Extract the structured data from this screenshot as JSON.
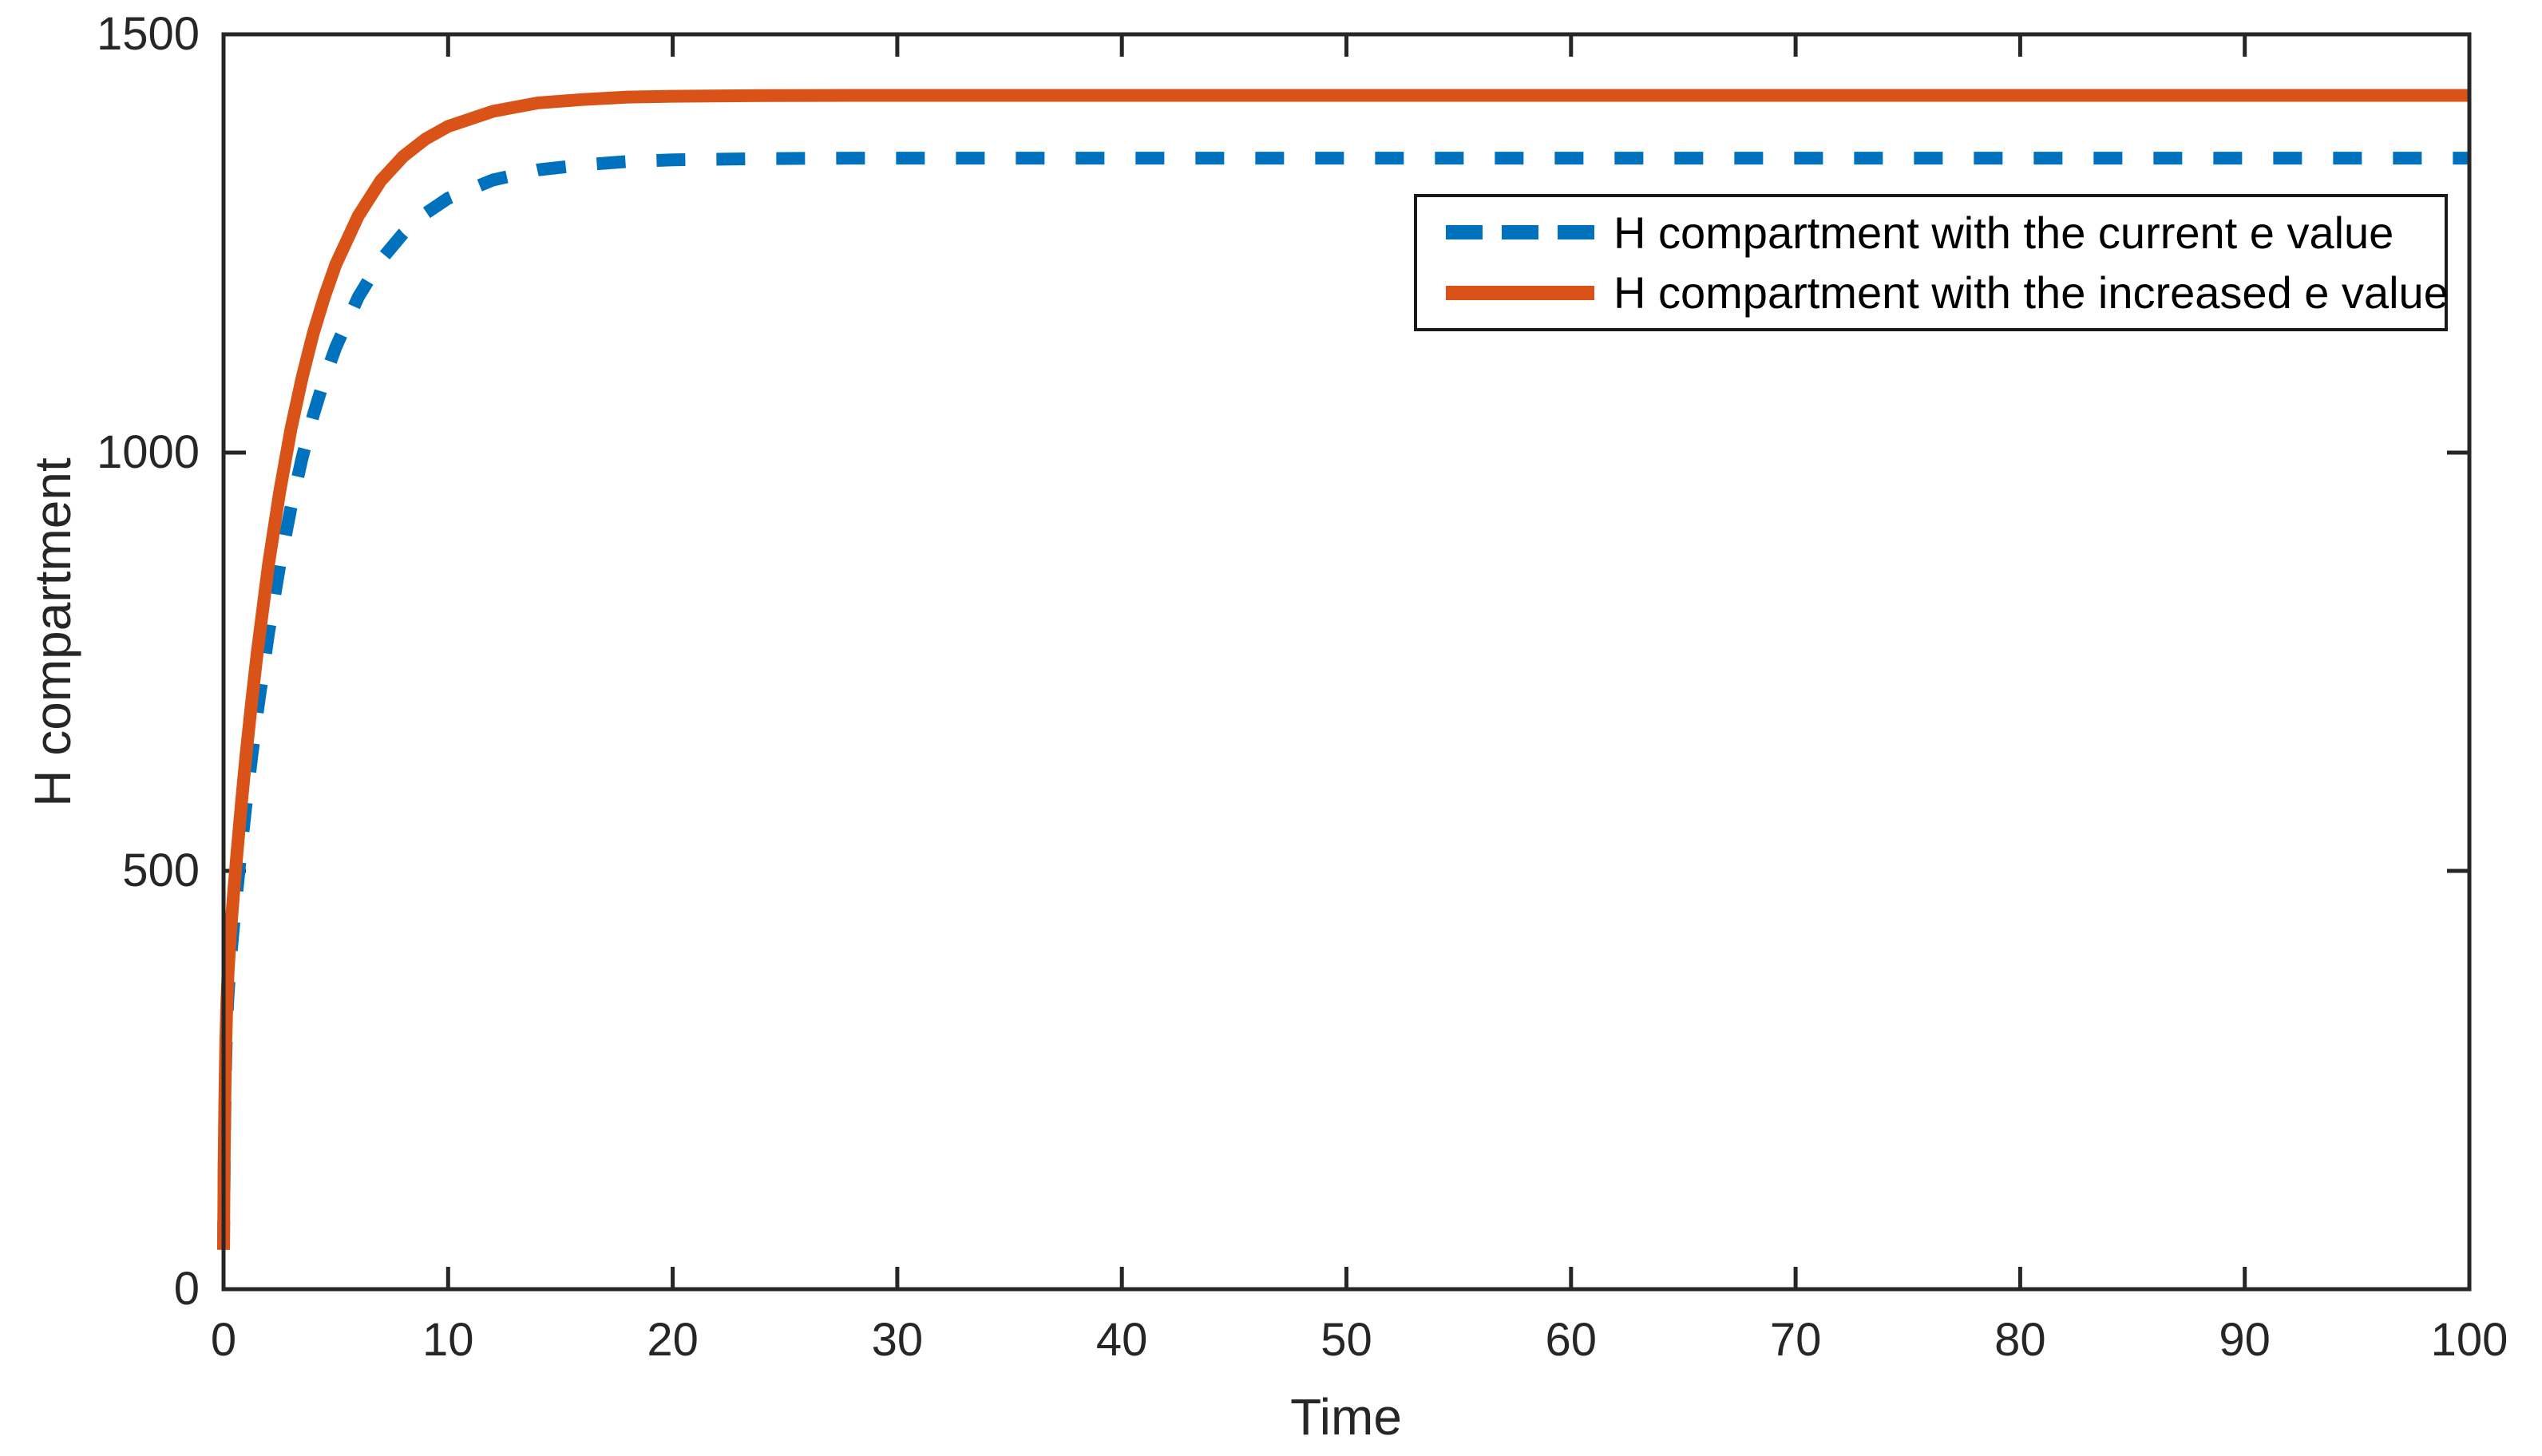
{
  "colors": {
    "series_current_blue": "#0072BD",
    "series_increased_orange": "#D95319",
    "axis": "#262626",
    "legend_border": "#1a1a1a",
    "background": "#ffffff"
  },
  "chart_data": {
    "type": "line",
    "title": "",
    "xlabel": "Time",
    "ylabel": "H compartment",
    "xlim": [
      0,
      100
    ],
    "ylim": [
      0,
      1500
    ],
    "x_ticks": [
      0,
      10,
      20,
      30,
      40,
      50,
      60,
      70,
      80,
      90,
      100
    ],
    "y_ticks": [
      0,
      500,
      1000,
      1500
    ],
    "grid": false,
    "box": true,
    "legend_position": "upper right inside",
    "series": [
      {
        "name": "H compartment with the current e value",
        "color": "#0072BD",
        "style": "dashed",
        "points": [
          [
            0,
            47
          ],
          [
            0.03,
            148
          ],
          [
            0.06,
            216
          ],
          [
            0.1,
            275
          ],
          [
            0.15,
            321
          ],
          [
            0.2,
            350
          ],
          [
            0.3,
            390
          ],
          [
            0.45,
            436
          ],
          [
            0.6,
            477
          ],
          [
            0.8,
            530
          ],
          [
            1,
            579
          ],
          [
            1.25,
            636
          ],
          [
            1.5,
            689
          ],
          [
            2,
            784
          ],
          [
            2.5,
            865
          ],
          [
            3,
            934
          ],
          [
            3.5,
            994
          ],
          [
            4,
            1045
          ],
          [
            4.5,
            1089
          ],
          [
            5,
            1126
          ],
          [
            6,
            1186
          ],
          [
            7,
            1230
          ],
          [
            8,
            1262
          ],
          [
            9,
            1286
          ],
          [
            10,
            1304
          ],
          [
            12,
            1326
          ],
          [
            14,
            1338
          ],
          [
            16,
            1344
          ],
          [
            18,
            1348
          ],
          [
            20,
            1350
          ],
          [
            24,
            1351.4
          ],
          [
            28,
            1352
          ],
          [
            40,
            1352
          ],
          [
            60,
            1352
          ],
          [
            80,
            1352
          ],
          [
            100,
            1352
          ]
        ]
      },
      {
        "name": "H compartment with the increased e value",
        "color": "#D95319",
        "style": "solid",
        "points": [
          [
            0,
            47
          ],
          [
            0.03,
            156
          ],
          [
            0.06,
            230
          ],
          [
            0.1,
            294
          ],
          [
            0.15,
            344
          ],
          [
            0.2,
            377
          ],
          [
            0.3,
            422
          ],
          [
            0.45,
            475
          ],
          [
            0.6,
            522
          ],
          [
            0.8,
            582
          ],
          [
            1,
            638
          ],
          [
            1.25,
            702
          ],
          [
            1.5,
            761
          ],
          [
            2,
            866
          ],
          [
            2.5,
            953
          ],
          [
            3,
            1028
          ],
          [
            3.5,
            1090
          ],
          [
            4,
            1143
          ],
          [
            4.5,
            1187
          ],
          [
            5,
            1225
          ],
          [
            6,
            1283
          ],
          [
            7,
            1325
          ],
          [
            8,
            1354
          ],
          [
            9,
            1375
          ],
          [
            10,
            1390
          ],
          [
            12,
            1408
          ],
          [
            14,
            1418
          ],
          [
            16,
            1422
          ],
          [
            18,
            1425
          ],
          [
            20,
            1426
          ],
          [
            24,
            1426.7
          ],
          [
            28,
            1427
          ],
          [
            40,
            1427
          ],
          [
            60,
            1427
          ],
          [
            80,
            1427
          ],
          [
            100,
            1427
          ]
        ]
      }
    ]
  }
}
